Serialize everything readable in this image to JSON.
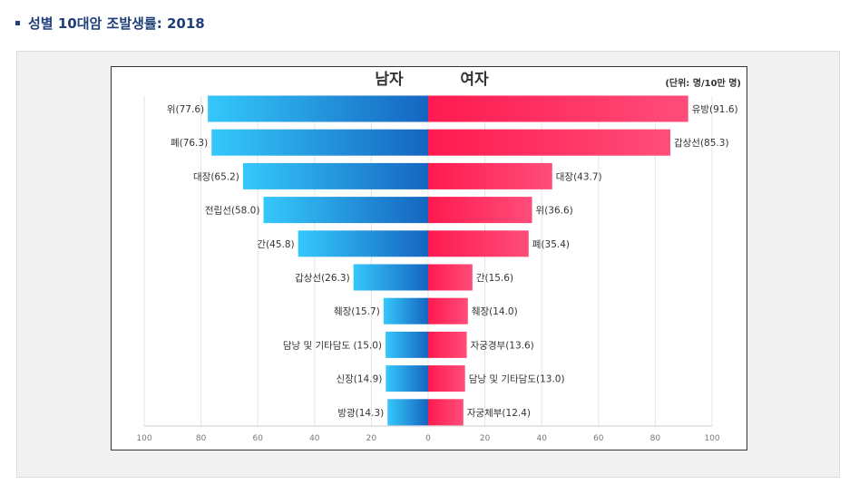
{
  "page": {
    "title": "성별 10대암 조발생률: 2018",
    "bullet_color": "#1f3f7a"
  },
  "chart_data": {
    "type": "bar",
    "orientation": "horizontal-population-pyramid",
    "unit_note": "(단위: 명/10만 명)",
    "xlim": [
      -100,
      100
    ],
    "x_ticks": [
      -100,
      -80,
      -60,
      -40,
      -20,
      0,
      20,
      40,
      60,
      80,
      100
    ],
    "x_tick_labels": [
      "100",
      "80",
      "60",
      "40",
      "20",
      "0",
      "20",
      "40",
      "60",
      "80",
      "100"
    ],
    "grid": "vertical",
    "series": [
      {
        "name": "남자",
        "side": "left",
        "color_light": "#35c8fb",
        "color_dark": "#1565c0",
        "categories": [
          "위",
          "폐",
          "대장",
          "전립선",
          "간",
          "갑상선",
          "췌장",
          "담낭 및 기타담도",
          "신장",
          "방광"
        ],
        "values": [
          77.6,
          76.3,
          65.2,
          58.0,
          45.8,
          26.3,
          15.7,
          15.0,
          14.9,
          14.3
        ],
        "labels": [
          "위(77.6)",
          "폐(76.3)",
          "대장(65.2)",
          "전립선(58.0)",
          "간(45.8)",
          "갑상선(26.3)",
          "췌장(15.7)",
          "담낭 및 기타담도 (15.0)",
          "신장(14.9)",
          "방광(14.3)"
        ]
      },
      {
        "name": "여자",
        "side": "right",
        "color_light": "#ff4d7a",
        "color_dark": "#ff1a4f",
        "categories": [
          "유방",
          "갑상선",
          "대장",
          "위",
          "폐",
          "간",
          "췌장",
          "자궁경부",
          "담낭 및 기타담도",
          "자궁체부"
        ],
        "values": [
          91.6,
          85.3,
          43.7,
          36.6,
          35.4,
          15.6,
          14.0,
          13.6,
          13.0,
          12.4
        ],
        "labels": [
          "유방(91.6)",
          "갑상선(85.3)",
          "대장(43.7)",
          "위(36.6)",
          "폐(35.4)",
          "간(15.6)",
          "췌장(14.0)",
          "자궁경부(13.6)",
          "담낭 및 기타담도(13.0)",
          "자궁체부(12.4)"
        ]
      }
    ]
  }
}
